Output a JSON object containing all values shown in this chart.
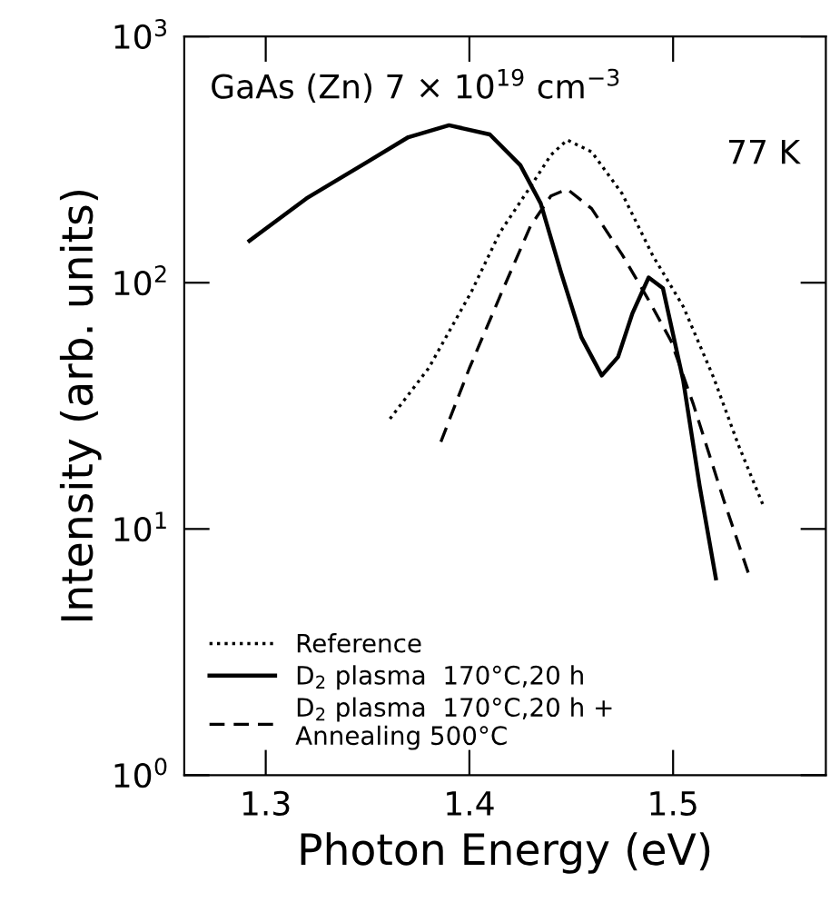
{
  "chart_data": {
    "type": "line",
    "xlabel": "Photon Energy (eV)",
    "ylabel": "Intensity (arb. units)",
    "log": "y",
    "xlim": [
      1.26,
      1.575
    ],
    "xticks": [
      1.3,
      1.4,
      1.5
    ],
    "ylim": [
      1,
      1000
    ],
    "yticks": [
      {
        "value": 1,
        "label": "10$^{0}$"
      },
      {
        "value": 10,
        "label": "10$^{1}$"
      },
      {
        "value": 100,
        "label": "10$^{2}$"
      },
      {
        "value": 1000,
        "label": "10$^{3}$"
      }
    ],
    "annotations": [
      "GaAs (Zn) 7 × 10$^{19}$ cm$^{−3}$",
      "77 K"
    ],
    "legend": "bottom left",
    "grid": false,
    "series": [
      {
        "name": "Reference",
        "color": "#000000",
        "line_style": "dotted",
        "x": [
          1.361,
          1.38,
          1.401,
          1.415,
          1.431,
          1.44,
          1.448,
          1.46,
          1.475,
          1.49,
          1.505,
          1.52,
          1.532,
          1.544
        ],
        "values": [
          28,
          45,
          92,
          160,
          253,
          330,
          380,
          340,
          230,
          129,
          80,
          41,
          22,
          12.6
        ]
      },
      {
        "name": "D$_{2}$ plasma  170°C,20 h",
        "color": "#000000",
        "line_style": "solid",
        "x": [
          1.292,
          1.32,
          1.35,
          1.37,
          1.39,
          1.41,
          1.425,
          1.435,
          1.445,
          1.455,
          1.465,
          1.473,
          1.48,
          1.488,
          1.495,
          1.505,
          1.513,
          1.521
        ],
        "values": [
          148,
          220,
          310,
          390,
          436,
          400,
          300,
          210,
          110,
          60,
          42,
          50,
          75,
          105,
          95,
          40,
          15,
          6.3
        ]
      },
      {
        "name": "D$_{2}$ plasma  170°C,20 h +\nAnnealing 500°C",
        "color": "#000000",
        "line_style": "dashed",
        "x": [
          1.386,
          1.4,
          1.416,
          1.43,
          1.44,
          1.448,
          1.46,
          1.475,
          1.488,
          1.499,
          1.51,
          1.525,
          1.537
        ],
        "values": [
          22.6,
          45,
          92,
          170,
          225,
          240,
          200,
          130,
          85,
          58,
          32,
          13,
          6.6
        ]
      }
    ]
  }
}
